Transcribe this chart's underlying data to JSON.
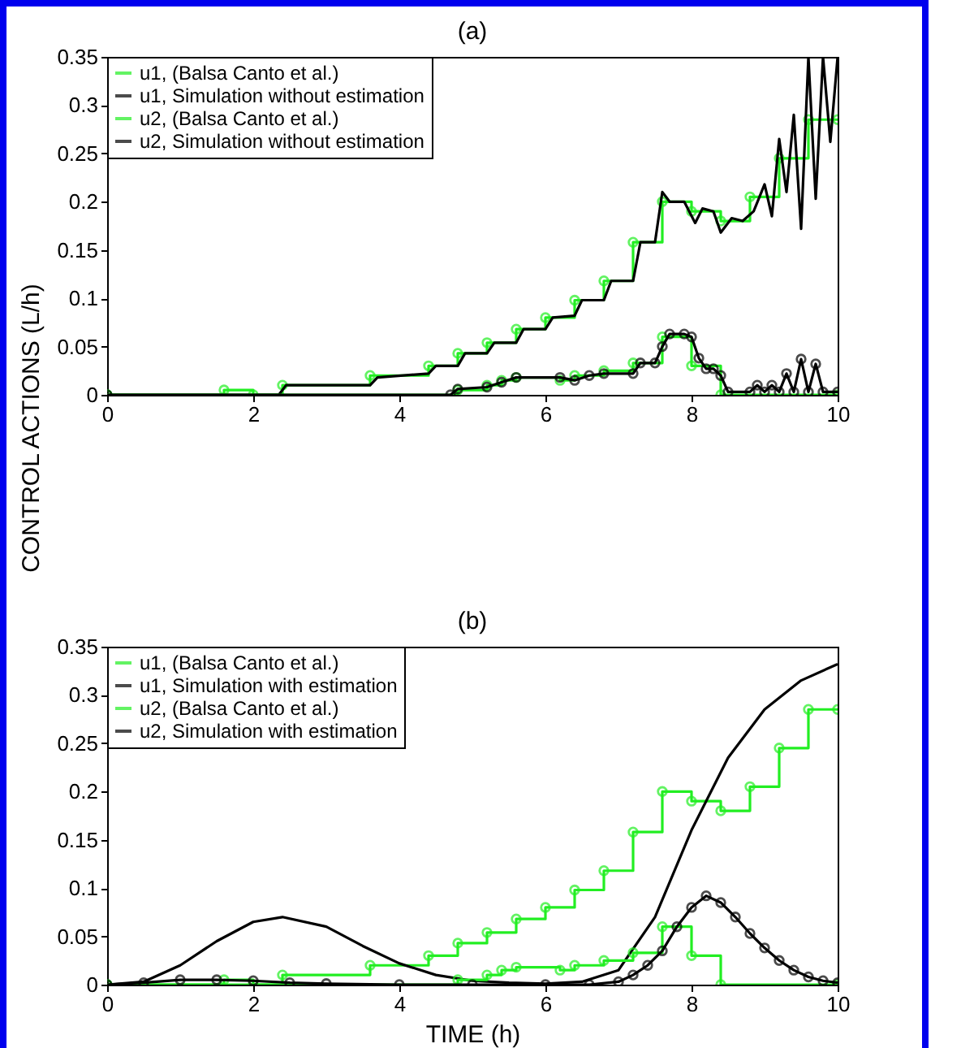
{
  "chart_data": [
    {
      "type": "line",
      "title": "(a)",
      "ylabel": "CONTROL ACTIONS (L/h)",
      "xlim": [
        0,
        10
      ],
      "xticks": [
        0,
        2,
        4,
        6,
        8,
        10
      ],
      "ylim": [
        0,
        0.35
      ],
      "yticks": [
        0,
        0.05,
        0.1,
        0.15,
        0.2,
        0.25,
        0.3,
        0.35
      ],
      "grid": false,
      "legend": "top left",
      "series": [
        {
          "name": "u1, (Balsa Canto et al.)",
          "type": "step",
          "marker": "circle",
          "color": "#22ee22",
          "x": [
            0,
            1.6,
            2.0,
            2.4,
            3.6,
            4.4,
            4.8,
            5.2,
            5.6,
            6.0,
            6.4,
            6.8,
            7.2,
            7.6,
            8.0,
            8.4,
            8.8,
            9.2,
            9.6,
            10
          ],
          "values": [
            0,
            0.005,
            0,
            0.01,
            0.02,
            0.03,
            0.043,
            0.054,
            0.068,
            0.08,
            0.098,
            0.118,
            0.158,
            0.2,
            0.19,
            0.18,
            0.205,
            0.245,
            0.285,
            0.285
          ]
        },
        {
          "name": "u1, Simulation without estimation",
          "type": "line",
          "marker": "none",
          "color": "#000000",
          "x": [
            0,
            2.35,
            2.45,
            3.6,
            3.7,
            4.4,
            4.5,
            4.8,
            4.9,
            5.2,
            5.3,
            5.6,
            5.7,
            6.0,
            6.1,
            6.4,
            6.5,
            6.8,
            6.9,
            7.2,
            7.3,
            7.5,
            7.6,
            7.7,
            7.9,
            8.05,
            8.15,
            8.3,
            8.4,
            8.55,
            8.7,
            8.85,
            9.0,
            9.1,
            9.2,
            9.3,
            9.4,
            9.5,
            9.6,
            9.7,
            9.8,
            9.9,
            10
          ],
          "values": [
            0,
            0,
            0.01,
            0.01,
            0.018,
            0.022,
            0.03,
            0.03,
            0.043,
            0.043,
            0.054,
            0.054,
            0.068,
            0.068,
            0.08,
            0.082,
            0.098,
            0.098,
            0.118,
            0.118,
            0.158,
            0.158,
            0.21,
            0.2,
            0.2,
            0.178,
            0.193,
            0.19,
            0.168,
            0.183,
            0.18,
            0.19,
            0.218,
            0.185,
            0.265,
            0.21,
            0.29,
            0.172,
            0.35,
            0.203,
            0.35,
            0.262,
            0.35
          ]
        },
        {
          "name": "u2, (Balsa Canto et al.)",
          "type": "step",
          "marker": "circle",
          "color": "#22ee22",
          "x": [
            0,
            4.8,
            5.2,
            5.4,
            5.6,
            6.2,
            6.4,
            6.8,
            7.2,
            7.6,
            8.0,
            8.4,
            10
          ],
          "values": [
            0,
            0.005,
            0.01,
            0.015,
            0.018,
            0.015,
            0.02,
            0.025,
            0.033,
            0.06,
            0.03,
            0,
            0
          ]
        },
        {
          "name": "u2, Simulation without estimation",
          "type": "line",
          "marker": "circle",
          "color": "#000000",
          "x": [
            0,
            4.7,
            4.8,
            5.2,
            5.4,
            5.6,
            6.2,
            6.4,
            6.6,
            6.8,
            7.2,
            7.3,
            7.5,
            7.6,
            7.7,
            7.9,
            8.0,
            8.1,
            8.2,
            8.3,
            8.4,
            8.5,
            8.8,
            8.9,
            9.0,
            9.1,
            9.2,
            9.3,
            9.4,
            9.5,
            9.6,
            9.7,
            9.8,
            10
          ],
          "values": [
            0,
            0,
            0.006,
            0.008,
            0.013,
            0.018,
            0.018,
            0.015,
            0.02,
            0.022,
            0.022,
            0.033,
            0.033,
            0.05,
            0.063,
            0.063,
            0.06,
            0.038,
            0.027,
            0.027,
            0.02,
            0.003,
            0.003,
            0.01,
            0.003,
            0.01,
            0.003,
            0.022,
            0.003,
            0.037,
            0.003,
            0.032,
            0.003,
            0.003
          ]
        }
      ]
    },
    {
      "type": "line",
      "title": "(b)",
      "xlabel": "TIME (h)",
      "xlim": [
        0,
        10
      ],
      "xticks": [
        0,
        2,
        4,
        6,
        8,
        10
      ],
      "ylim": [
        0,
        0.35
      ],
      "yticks": [
        0,
        0.05,
        0.1,
        0.15,
        0.2,
        0.25,
        0.3,
        0.35
      ],
      "grid": false,
      "legend": "top left",
      "series": [
        {
          "name": "u1, (Balsa Canto et al.)",
          "type": "step",
          "marker": "circle",
          "color": "#22ee22",
          "x": [
            0,
            1.6,
            2.0,
            2.4,
            3.6,
            4.4,
            4.8,
            5.2,
            5.6,
            6.0,
            6.4,
            6.8,
            7.2,
            7.6,
            8.0,
            8.4,
            8.8,
            9.2,
            9.6,
            10
          ],
          "values": [
            0,
            0.005,
            0,
            0.01,
            0.02,
            0.03,
            0.043,
            0.054,
            0.068,
            0.08,
            0.098,
            0.118,
            0.158,
            0.2,
            0.19,
            0.18,
            0.205,
            0.245,
            0.285,
            0.285
          ]
        },
        {
          "name": "u1, Simulation with estimation",
          "type": "line",
          "marker": "none",
          "color": "#000000",
          "x": [
            0,
            0.5,
            1.0,
            1.5,
            2.0,
            2.4,
            3.0,
            3.5,
            4.0,
            4.5,
            5.0,
            5.5,
            6.0,
            6.5,
            7.0,
            7.5,
            8.0,
            8.5,
            9.0,
            9.5,
            10
          ],
          "values": [
            0,
            0.003,
            0.02,
            0.045,
            0.065,
            0.07,
            0.06,
            0.04,
            0.022,
            0.01,
            0.004,
            0.002,
            0.001,
            0.003,
            0.015,
            0.07,
            0.16,
            0.235,
            0.285,
            0.315,
            0.332
          ]
        },
        {
          "name": "u2, (Balsa Canto et al.)",
          "type": "step",
          "marker": "circle",
          "color": "#22ee22",
          "x": [
            0,
            4.8,
            5.2,
            5.4,
            5.6,
            6.2,
            6.4,
            6.8,
            7.2,
            7.6,
            8.0,
            8.4,
            10
          ],
          "values": [
            0,
            0.005,
            0.01,
            0.015,
            0.018,
            0.015,
            0.02,
            0.025,
            0.033,
            0.06,
            0.03,
            0,
            0
          ]
        },
        {
          "name": "u2, Simulation with estimation",
          "type": "line",
          "marker": "circle",
          "color": "#000000",
          "x": [
            0,
            0.5,
            1.0,
            1.5,
            2.0,
            2.5,
            3.0,
            4.0,
            5.0,
            6.0,
            6.6,
            7.0,
            7.2,
            7.4,
            7.6,
            7.8,
            8.0,
            8.2,
            8.4,
            8.6,
            8.8,
            9.0,
            9.2,
            9.4,
            9.6,
            9.8,
            10
          ],
          "values": [
            0,
            0.002,
            0.005,
            0.005,
            0.004,
            0.002,
            0.001,
            0,
            0,
            0,
            0,
            0.003,
            0.01,
            0.02,
            0.035,
            0.06,
            0.08,
            0.092,
            0.085,
            0.07,
            0.053,
            0.038,
            0.025,
            0.015,
            0.008,
            0.004,
            0.002
          ]
        }
      ]
    }
  ]
}
